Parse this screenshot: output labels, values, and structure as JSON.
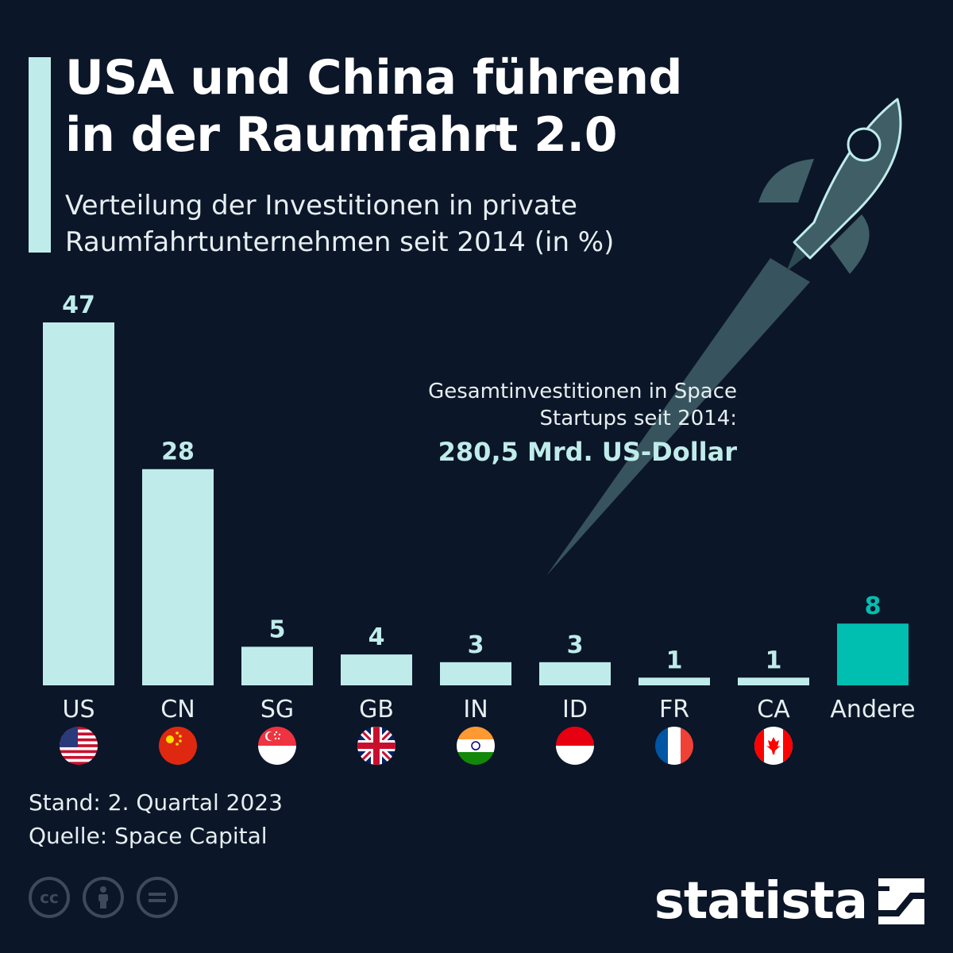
{
  "title_lines": [
    "USA und China führend",
    "in der Raumfahrt 2.0"
  ],
  "subtitle_lines": [
    "Verteilung der Investitionen in private",
    "Raumfahrtunternehmen seit 2014 (in %)"
  ],
  "total": {
    "label_lines": [
      "Gesamtinvestitionen in Space",
      "Startups seit 2014:"
    ],
    "amount": "280,5 Mrd. US-Dollar"
  },
  "footer": {
    "stand": "Stand: 2. Quartal 2023",
    "source": "Quelle: Space Capital"
  },
  "brand": {
    "name": "statista"
  },
  "colors": {
    "background": "#0b1628",
    "bar": "#bfeceb",
    "highlight_bar": "#00bfb1",
    "rocket": "#3f5e66"
  },
  "chart_data": {
    "type": "bar",
    "categories": [
      "US",
      "CN",
      "SG",
      "GB",
      "IN",
      "ID",
      "FR",
      "CA",
      "Andere"
    ],
    "values": [
      47,
      28,
      5,
      4,
      3,
      3,
      1,
      1,
      8
    ],
    "highlight": [
      "Andere"
    ],
    "flags": [
      "flag-us-icon",
      "flag-cn-icon",
      "flag-sg-icon",
      "flag-gb-icon",
      "flag-in-icon",
      "flag-id-icon",
      "flag-fr-icon",
      "flag-ca-icon",
      null
    ],
    "data_labels": true,
    "grid": false,
    "ylim": [
      0,
      47
    ]
  }
}
